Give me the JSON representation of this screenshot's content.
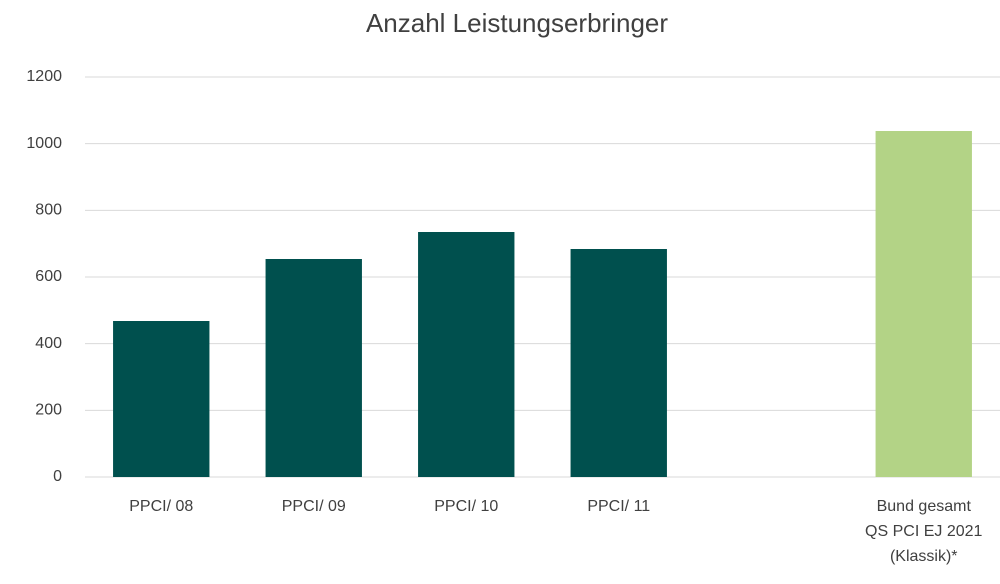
{
  "chart_data": {
    "type": "bar",
    "title": "Anzahl Leistungserbringer",
    "categories": [
      "PPCI/ 08",
      "PPCI/ 09",
      "PPCI/ 10",
      "PPCI/ 11",
      null,
      "Bund gesamt\nQS PCI EJ 2021\n(Klassik)*"
    ],
    "values": [
      468,
      654,
      735,
      684,
      null,
      1038
    ],
    "colors": [
      "#00504e",
      "#00504e",
      "#00504e",
      "#00504e",
      null,
      "#b3d386"
    ],
    "ylim": [
      0,
      1200
    ],
    "yticks": [
      0,
      200,
      400,
      600,
      800,
      1000,
      1200
    ],
    "grid": true
  }
}
